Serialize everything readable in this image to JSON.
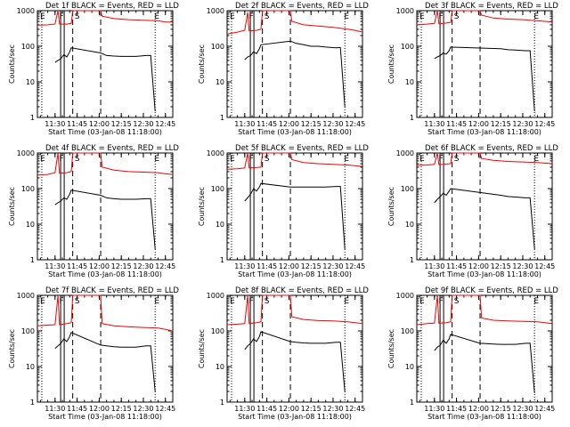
{
  "figure": {
    "ylabel": "Counts/sec",
    "xlabel": "Start Time (03-Jan-08 11:18:00)",
    "ytick_labels": [
      "1",
      "10",
      "100",
      "1000"
    ],
    "xtick_labels": [
      "11:30",
      "11:45",
      "12:00",
      "12:15",
      "12:30",
      "12:45"
    ],
    "series_colors": {
      "events": "#000000",
      "lld": "#ff0000"
    },
    "marker_labels": {
      "E": "E",
      "F": "F",
      "S": "S"
    }
  },
  "chart_data": [
    {
      "type": "line",
      "title": "Det 1f BLACK = Events, RED = LLD",
      "xlabel": "Start Time (03-Jan-08 11:18:00)",
      "ylabel": "Counts/sec",
      "yscale": "log",
      "ylim": [
        1,
        1000
      ],
      "xlim": [
        "11:18",
        "12:50"
      ],
      "markers": {
        "E_start": "11:21",
        "F": "11:35",
        "S": "11:42",
        "E_end": "12:38"
      },
      "series": [
        {
          "name": "BLACK = Events",
          "color": "#000000",
          "x": [
            "11:30",
            "11:32",
            "11:34",
            "11:36",
            "11:38",
            "11:40",
            "11:41",
            "12:01",
            "12:05",
            "12:10",
            "12:15",
            "12:20",
            "12:25",
            "12:32",
            "12:35",
            "12:38"
          ],
          "y": [
            35,
            40,
            45,
            58,
            50,
            70,
            90,
            65,
            55,
            53,
            52,
            52,
            52,
            55,
            55,
            1.5
          ]
        },
        {
          "name": "RED = LLD",
          "color": "#ff0000",
          "x": [
            "11:18",
            "11:25",
            "11:30",
            "11:32",
            "11:33",
            "11:38",
            "11:41",
            "11:42",
            "12:01",
            "12:02",
            "12:10",
            "12:20",
            "12:30",
            "12:40",
            "12:45",
            "12:50"
          ],
          "y": [
            390,
            400,
            420,
            1000,
            420,
            420,
            440,
            1000,
            1000,
            700,
            600,
            560,
            540,
            520,
            480,
            480
          ]
        }
      ]
    },
    {
      "type": "line",
      "title": "Det 2f BLACK = Events, RED = LLD",
      "xlabel": "Start Time (03-Jan-08 11:18:00)",
      "ylabel": "Counts/sec",
      "yscale": "log",
      "ylim": [
        1,
        1000
      ],
      "xlim": [
        "11:18",
        "12:50"
      ],
      "markers": {
        "E_start": "11:21",
        "F": "11:35",
        "S": "11:42",
        "E_end": "12:38"
      },
      "series": [
        {
          "name": "BLACK = Events",
          "color": "#000000",
          "x": [
            "11:30",
            "11:32",
            "11:34",
            "11:36",
            "11:38",
            "11:40",
            "11:41",
            "12:01",
            "12:05",
            "12:10",
            "12:15",
            "12:20",
            "12:25",
            "12:32",
            "12:35",
            "12:38"
          ],
          "y": [
            42,
            50,
            55,
            70,
            62,
            85,
            110,
            140,
            120,
            110,
            100,
            100,
            95,
            90,
            92,
            2
          ]
        },
        {
          "name": "RED = LLD",
          "color": "#ff0000",
          "x": [
            "11:18",
            "11:25",
            "11:30",
            "11:32",
            "11:33",
            "11:38",
            "11:41",
            "11:42",
            "12:01",
            "12:02",
            "12:10",
            "12:20",
            "12:30",
            "12:40",
            "12:45",
            "12:50"
          ],
          "y": [
            220,
            250,
            280,
            900,
            270,
            280,
            300,
            1000,
            1000,
            500,
            400,
            370,
            340,
            300,
            280,
            250
          ]
        }
      ]
    },
    {
      "type": "line",
      "title": "Det 3f BLACK = Events, RED = LLD",
      "xlabel": "Start Time (03-Jan-08 11:18:00)",
      "ylabel": "Counts/sec",
      "yscale": "log",
      "ylim": [
        1,
        1000
      ],
      "xlim": [
        "11:18",
        "12:50"
      ],
      "markers": {
        "E_start": "11:21",
        "F": "11:35",
        "S": "11:42",
        "E_end": "12:38"
      },
      "series": [
        {
          "name": "BLACK = Events",
          "color": "#000000",
          "x": [
            "11:30",
            "11:32",
            "11:34",
            "11:36",
            "11:38",
            "11:40",
            "11:41",
            "12:15",
            "12:20",
            "12:25",
            "12:32",
            "12:35",
            "12:38"
          ],
          "y": [
            45,
            50,
            55,
            65,
            60,
            75,
            95,
            85,
            80,
            78,
            75,
            75,
            1.5
          ]
        },
        {
          "name": "RED = LLD",
          "color": "#ff0000",
          "x": [
            "11:18",
            "11:25",
            "11:30",
            "11:32",
            "11:33",
            "11:38",
            "11:41",
            "11:42",
            "12:01",
            "12:02",
            "12:10",
            "12:20",
            "12:30",
            "12:40",
            "12:45",
            "12:50"
          ],
          "y": [
            400,
            420,
            440,
            1000,
            430,
            450,
            470,
            1000,
            1000,
            750,
            620,
            580,
            560,
            520,
            500,
            480
          ]
        }
      ]
    },
    {
      "type": "line",
      "title": "Det 4f BLACK = Events, RED = LLD",
      "xlabel": "Start Time (03-Jan-08 11:18:00)",
      "ylabel": "Counts/sec",
      "yscale": "log",
      "ylim": [
        1,
        1000
      ],
      "xlim": [
        "11:18",
        "12:50"
      ],
      "markers": {
        "E_start": "11:21",
        "F": "11:35",
        "S": "11:42",
        "E_end": "12:38"
      },
      "series": [
        {
          "name": "BLACK = Events",
          "color": "#000000",
          "x": [
            "11:30",
            "11:32",
            "11:34",
            "11:36",
            "11:38",
            "11:40",
            "11:41",
            "12:01",
            "12:05",
            "12:10",
            "12:15",
            "12:20",
            "12:25",
            "12:32",
            "12:35",
            "12:38"
          ],
          "y": [
            35,
            40,
            45,
            55,
            50,
            70,
            90,
            65,
            55,
            52,
            50,
            50,
            50,
            52,
            52,
            2
          ]
        },
        {
          "name": "RED = LLD",
          "color": "#ff0000",
          "x": [
            "11:18",
            "11:25",
            "11:30",
            "11:32",
            "11:33",
            "11:38",
            "11:41",
            "11:42",
            "12:01",
            "12:02",
            "12:10",
            "12:20",
            "12:30",
            "12:40",
            "12:45",
            "12:50"
          ],
          "y": [
            240,
            250,
            280,
            1000,
            270,
            280,
            300,
            1000,
            1000,
            400,
            330,
            300,
            290,
            280,
            260,
            250
          ]
        }
      ]
    },
    {
      "type": "line",
      "title": "Det 5f BLACK = Events, RED = LLD",
      "xlabel": "Start Time (03-Jan-08 11:18:00)",
      "ylabel": "Counts/sec",
      "yscale": "log",
      "ylim": [
        1,
        1000
      ],
      "xlim": [
        "11:18",
        "12:50"
      ],
      "markers": {
        "E_start": "11:21",
        "F": "11:35",
        "S": "11:42",
        "E_end": "12:38"
      },
      "series": [
        {
          "name": "BLACK = Events",
          "color": "#000000",
          "x": [
            "11:30",
            "11:32",
            "11:34",
            "11:36",
            "11:38",
            "11:40",
            "11:41",
            "12:01",
            "12:05",
            "12:10",
            "12:15",
            "12:20",
            "12:25",
            "12:32",
            "12:35",
            "12:38"
          ],
          "y": [
            45,
            55,
            70,
            100,
            85,
            110,
            140,
            110,
            110,
            110,
            110,
            110,
            110,
            115,
            115,
            2
          ]
        },
        {
          "name": "RED = LLD",
          "color": "#ff0000",
          "x": [
            "11:18",
            "11:25",
            "11:30",
            "11:32",
            "11:33",
            "11:38",
            "11:41",
            "11:42",
            "12:01",
            "12:02",
            "12:10",
            "12:20",
            "12:30",
            "12:40",
            "12:45",
            "12:50"
          ],
          "y": [
            350,
            360,
            380,
            1000,
            380,
            390,
            400,
            1000,
            1000,
            650,
            540,
            500,
            480,
            460,
            440,
            420
          ]
        }
      ]
    },
    {
      "type": "line",
      "title": "Det 6f BLACK = Events, RED = LLD",
      "xlabel": "Start Time (03-Jan-08 11:18:00)",
      "ylabel": "Counts/sec",
      "yscale": "log",
      "ylim": [
        1,
        1000
      ],
      "xlim": [
        "11:18",
        "12:50"
      ],
      "markers": {
        "E_start": "11:21",
        "F": "11:35",
        "S": "11:42",
        "E_end": "12:38"
      },
      "series": [
        {
          "name": "BLACK = Events",
          "color": "#000000",
          "x": [
            "11:30",
            "11:32",
            "11:34",
            "11:36",
            "11:38",
            "11:40",
            "11:41",
            "12:15",
            "12:20",
            "12:25",
            "12:32",
            "12:35",
            "12:38"
          ],
          "y": [
            40,
            50,
            60,
            75,
            65,
            85,
            100,
            65,
            60,
            58,
            55,
            55,
            2
          ]
        },
        {
          "name": "RED = LLD",
          "color": "#ff0000",
          "x": [
            "11:18",
            "11:25",
            "11:30",
            "11:32",
            "11:33",
            "11:38",
            "11:41",
            "11:42",
            "12:01",
            "12:02",
            "12:10",
            "12:20",
            "12:30",
            "12:40",
            "12:45",
            "12:50"
          ],
          "y": [
            450,
            460,
            480,
            1000,
            470,
            490,
            500,
            1000,
            1000,
            700,
            620,
            580,
            560,
            540,
            520,
            500
          ]
        }
      ]
    },
    {
      "type": "line",
      "title": "Det 7f BLACK = Events, RED = LLD",
      "xlabel": "Start Time (03-Jan-08 11:18:00)",
      "ylabel": "Counts/sec",
      "yscale": "log",
      "ylim": [
        1,
        1000
      ],
      "xlim": [
        "11:18",
        "12:50"
      ],
      "markers": {
        "E_start": "11:21",
        "F": "11:35",
        "S": "11:42",
        "E_end": "12:38"
      },
      "series": [
        {
          "name": "BLACK = Events",
          "color": "#000000",
          "x": [
            "11:30",
            "11:32",
            "11:34",
            "11:36",
            "11:38",
            "11:40",
            "11:41",
            "12:01",
            "12:05",
            "12:10",
            "12:15",
            "12:20",
            "12:25",
            "12:32",
            "12:35",
            "12:38"
          ],
          "y": [
            32,
            38,
            45,
            60,
            50,
            70,
            90,
            40,
            38,
            36,
            35,
            35,
            35,
            38,
            38,
            2
          ]
        },
        {
          "name": "RED = LLD",
          "color": "#ff0000",
          "x": [
            "11:18",
            "11:25",
            "11:30",
            "11:32",
            "11:33",
            "11:38",
            "11:41",
            "11:42",
            "12:01",
            "12:02",
            "12:10",
            "12:20",
            "12:30",
            "12:40",
            "12:45",
            "12:50"
          ],
          "y": [
            140,
            145,
            150,
            1000,
            150,
            160,
            170,
            1000,
            1000,
            160,
            140,
            130,
            125,
            120,
            110,
            100
          ]
        }
      ]
    },
    {
      "type": "line",
      "title": "Det 8f BLACK = Events, RED = LLD",
      "xlabel": "Start Time (03-Jan-08 11:18:00)",
      "ylabel": "Counts/sec",
      "yscale": "log",
      "ylim": [
        1,
        1000
      ],
      "xlim": [
        "11:18",
        "12:50"
      ],
      "markers": {
        "E_start": "11:21",
        "F": "11:35",
        "S": "11:42",
        "E_end": "12:38"
      },
      "series": [
        {
          "name": "BLACK = Events",
          "color": "#000000",
          "x": [
            "11:30",
            "11:32",
            "11:34",
            "11:36",
            "11:38",
            "11:40",
            "11:41",
            "12:01",
            "12:05",
            "12:10",
            "12:15",
            "12:20",
            "12:25",
            "12:32",
            "12:35",
            "12:38"
          ],
          "y": [
            30,
            38,
            45,
            60,
            50,
            70,
            95,
            50,
            48,
            46,
            45,
            45,
            45,
            48,
            48,
            2
          ]
        },
        {
          "name": "RED = LLD",
          "color": "#ff0000",
          "x": [
            "11:18",
            "11:25",
            "11:30",
            "11:32",
            "11:33",
            "11:38",
            "11:41",
            "11:42",
            "12:01",
            "12:02",
            "12:10",
            "12:20",
            "12:30",
            "12:40",
            "12:45",
            "12:50"
          ],
          "y": [
            150,
            155,
            160,
            1000,
            160,
            170,
            180,
            1000,
            1000,
            250,
            210,
            195,
            190,
            180,
            170,
            160
          ]
        }
      ]
    },
    {
      "type": "line",
      "title": "Det 9f BLACK = Events, RED = LLD",
      "xlabel": "Start Time (03-Jan-08 11:18:00)",
      "ylabel": "Counts/sec",
      "yscale": "log",
      "ylim": [
        1,
        1000
      ],
      "xlim": [
        "11:18",
        "12:50"
      ],
      "markers": {
        "E_start": "11:21",
        "F": "11:35",
        "S": "11:42",
        "E_end": "12:38"
      },
      "series": [
        {
          "name": "BLACK = Events",
          "color": "#000000",
          "x": [
            "11:30",
            "11:32",
            "11:34",
            "11:36",
            "11:38",
            "11:40",
            "11:41",
            "12:01",
            "12:05",
            "12:10",
            "12:15",
            "12:20",
            "12:25",
            "12:32",
            "12:35",
            "12:38"
          ],
          "y": [
            28,
            35,
            40,
            55,
            45,
            60,
            80,
            45,
            44,
            43,
            42,
            42,
            42,
            45,
            45,
            1.8
          ]
        },
        {
          "name": "RED = LLD",
          "color": "#ff0000",
          "x": [
            "11:18",
            "11:25",
            "11:30",
            "11:32",
            "11:33",
            "11:38",
            "11:41",
            "11:42",
            "12:01",
            "12:02",
            "12:10",
            "12:20",
            "12:30",
            "12:40",
            "12:45",
            "12:50"
          ],
          "y": [
            150,
            160,
            165,
            1000,
            165,
            170,
            180,
            1000,
            1000,
            230,
            200,
            190,
            185,
            180,
            170,
            160
          ]
        }
      ]
    }
  ]
}
